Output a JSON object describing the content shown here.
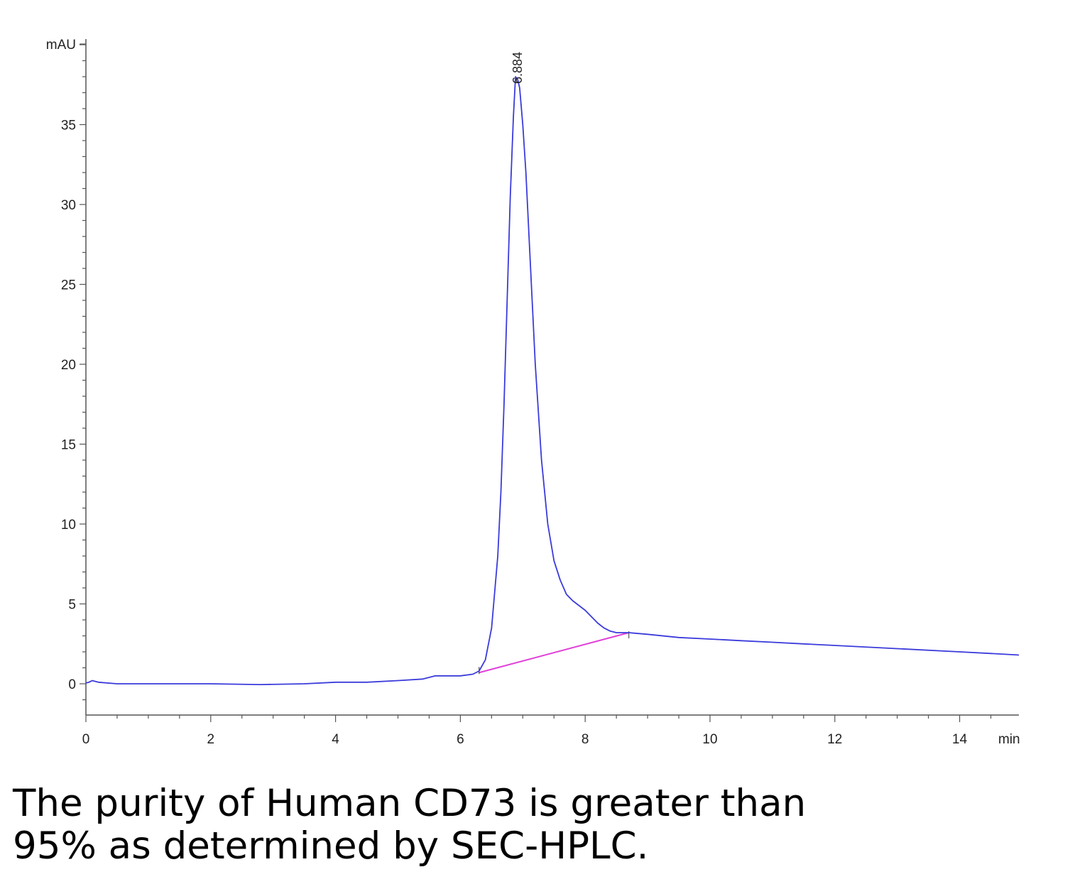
{
  "chart_data": {
    "type": "line",
    "y_unit": "mAU",
    "x_unit": "min",
    "xlim": [
      0,
      15
    ],
    "ylim": [
      -2,
      40
    ],
    "x_ticks": [
      0,
      2,
      4,
      6,
      8,
      10,
      12,
      14
    ],
    "y_ticks": [
      0,
      5,
      10,
      15,
      20,
      25,
      30,
      35
    ],
    "peak_label": "6.884",
    "peak_time": 6.884,
    "series": [
      {
        "color": "#3b3bdc",
        "x": [
          0,
          0.05,
          0.1,
          0.2,
          0.5,
          1.0,
          2.0,
          2.8,
          3.5,
          4.0,
          4.5,
          5.0,
          5.4,
          5.6,
          6.0,
          6.2,
          6.3,
          6.4,
          6.5,
          6.6,
          6.65,
          6.7,
          6.75,
          6.8,
          6.85,
          6.884,
          6.92,
          6.95,
          7.0,
          7.05,
          7.1,
          7.15,
          7.2,
          7.3,
          7.4,
          7.5,
          7.6,
          7.7,
          7.8,
          8.0,
          8.1,
          8.2,
          8.3,
          8.4,
          8.5,
          8.6,
          8.7,
          9.0,
          9.5,
          10.0,
          10.5,
          11.0,
          11.5,
          12.0,
          13.0,
          14.0,
          14.5,
          14.95
        ],
        "y": [
          0.05,
          0.1,
          0.2,
          0.1,
          0.0,
          0.0,
          0.0,
          -0.05,
          0.0,
          0.1,
          0.1,
          0.2,
          0.3,
          0.5,
          0.5,
          0.6,
          0.8,
          1.5,
          3.5,
          8.0,
          12.0,
          17.5,
          24.0,
          30.5,
          35.5,
          38.0,
          37.8,
          37.3,
          35.0,
          32.0,
          28.0,
          24.0,
          20.0,
          14.0,
          10.0,
          7.7,
          6.5,
          5.6,
          5.2,
          4.6,
          4.2,
          3.8,
          3.5,
          3.3,
          3.2,
          3.2,
          3.2,
          3.1,
          2.9,
          2.8,
          2.7,
          2.6,
          2.5,
          2.4,
          2.2,
          2.0,
          1.9,
          1.8
        ]
      }
    ],
    "baseline": {
      "color": "#e040d8",
      "x": [
        6.3,
        8.7
      ],
      "y": [
        0.7,
        3.2
      ]
    }
  },
  "caption": {
    "line1": "The purity of Human CD73 is greater than",
    "line2": "95% as determined by SEC-HPLC."
  }
}
